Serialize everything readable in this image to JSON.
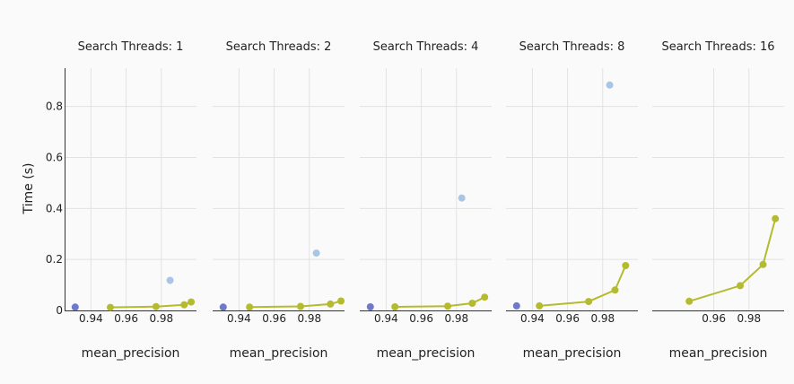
{
  "figure": {
    "ylabel": "Time (s)"
  },
  "chart_data": [
    {
      "type": "scatter",
      "title": "Search Threads: 1",
      "xlabel": "mean_precision",
      "ylabel": "Time (s)",
      "xlim": [
        0.925,
        1.0
      ],
      "ylim": [
        0,
        0.95
      ],
      "xticks": [
        0.94,
        0.96,
        0.98
      ],
      "yticks": [
        0,
        0.2,
        0.4,
        0.6,
        0.8
      ],
      "grid": true,
      "series": [
        {
          "color": "#6f79cc",
          "line": false,
          "x": [
            0.931
          ],
          "y": [
            0.013
          ]
        },
        {
          "color": "#a9c5e6",
          "line": false,
          "x": [
            0.985
          ],
          "y": [
            0.118
          ]
        },
        {
          "color": "#b5bb2e",
          "line": true,
          "x": [
            0.951,
            0.977,
            0.993,
            0.997
          ],
          "y": [
            0.012,
            0.015,
            0.022,
            0.033
          ]
        }
      ]
    },
    {
      "type": "scatter",
      "title": "Search Threads: 2",
      "xlabel": "mean_precision",
      "ylabel": "",
      "xlim": [
        0.925,
        1.0
      ],
      "ylim": [
        0,
        0.95
      ],
      "xticks": [
        0.94,
        0.96,
        0.98
      ],
      "yticks": [
        0,
        0.2,
        0.4,
        0.6,
        0.8
      ],
      "grid": true,
      "series": [
        {
          "color": "#6f79cc",
          "line": false,
          "x": [
            0.931
          ],
          "y": [
            0.013
          ]
        },
        {
          "color": "#a9c5e6",
          "line": false,
          "x": [
            0.984
          ],
          "y": [
            0.225
          ]
        },
        {
          "color": "#b5bb2e",
          "line": true,
          "x": [
            0.946,
            0.975,
            0.992,
            0.998
          ],
          "y": [
            0.013,
            0.016,
            0.025,
            0.037
          ]
        }
      ]
    },
    {
      "type": "scatter",
      "title": "Search Threads: 4",
      "xlabel": "mean_precision",
      "ylabel": "",
      "xlim": [
        0.925,
        1.0
      ],
      "ylim": [
        0,
        0.95
      ],
      "xticks": [
        0.94,
        0.96,
        0.98
      ],
      "yticks": [
        0,
        0.2,
        0.4,
        0.6,
        0.8
      ],
      "grid": true,
      "series": [
        {
          "color": "#6f79cc",
          "line": false,
          "x": [
            0.931
          ],
          "y": [
            0.014
          ]
        },
        {
          "color": "#a9c5e6",
          "line": false,
          "x": [
            0.983
          ],
          "y": [
            0.441
          ]
        },
        {
          "color": "#b5bb2e",
          "line": true,
          "x": [
            0.945,
            0.975,
            0.989,
            0.996
          ],
          "y": [
            0.014,
            0.017,
            0.028,
            0.052
          ]
        }
      ]
    },
    {
      "type": "scatter",
      "title": "Search Threads: 8",
      "xlabel": "mean_precision",
      "ylabel": "",
      "xlim": [
        0.925,
        1.0
      ],
      "ylim": [
        0,
        0.95
      ],
      "xticks": [
        0.94,
        0.96,
        0.98
      ],
      "yticks": [
        0,
        0.2,
        0.4,
        0.6,
        0.8
      ],
      "grid": true,
      "series": [
        {
          "color": "#6f79cc",
          "line": false,
          "x": [
            0.931
          ],
          "y": [
            0.018
          ]
        },
        {
          "color": "#a9c5e6",
          "line": false,
          "x": [
            0.984
          ],
          "y": [
            0.884
          ]
        },
        {
          "color": "#b5bb2e",
          "line": true,
          "x": [
            0.944,
            0.972,
            0.987,
            0.993
          ],
          "y": [
            0.018,
            0.035,
            0.08,
            0.176
          ]
        }
      ]
    },
    {
      "type": "line",
      "title": "Search Threads: 16",
      "xlabel": "mean_precision",
      "ylabel": "",
      "xlim": [
        0.925,
        1.0
      ],
      "ylim": [
        0,
        0.95
      ],
      "xticks": [
        0.96,
        0.98
      ],
      "yticks": [
        0,
        0.2,
        0.4,
        0.6,
        0.8
      ],
      "grid": true,
      "series": [
        {
          "color": "#b5bb2e",
          "line": true,
          "x": [
            0.946,
            0.975,
            0.988,
            0.995
          ],
          "y": [
            0.036,
            0.097,
            0.18,
            0.36
          ]
        }
      ]
    }
  ]
}
